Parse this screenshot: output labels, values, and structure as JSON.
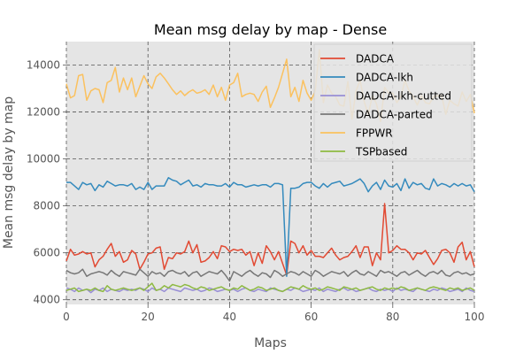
{
  "chart_data": {
    "type": "line",
    "title": "Mean msg delay by map - Dense",
    "xlabel": "Maps",
    "ylabel": "Mean msg delay by map",
    "xlim": [
      0,
      100
    ],
    "ylim": [
      3800,
      15000
    ],
    "xticks": [
      0,
      20,
      40,
      60,
      80,
      100
    ],
    "yticks": [
      4000,
      6000,
      8000,
      10000,
      12000,
      14000
    ],
    "grid": true,
    "legend_position": "top-right",
    "background": "#e5e5e5",
    "series": [
      {
        "name": "DADCA",
        "color": "#e24a33",
        "values": [
          5650,
          6150,
          5900,
          5950,
          6050,
          5950,
          6000,
          5400,
          5700,
          5850,
          6150,
          6400,
          5850,
          6050,
          5600,
          5700,
          6100,
          5950,
          5300,
          5600,
          5950,
          6000,
          6200,
          6250,
          5300,
          5800,
          5750,
          6000,
          5950,
          6050,
          6500,
          6000,
          6350,
          5600,
          5650,
          5800,
          6050,
          5750,
          6300,
          6250,
          6050,
          6150,
          6100,
          6150,
          5900,
          6050,
          5450,
          6000,
          5550,
          6300,
          6050,
          5700,
          6050,
          5550,
          5050,
          6500,
          6400,
          6000,
          6300,
          5900,
          6100,
          5850,
          5850,
          5800,
          6000,
          6200,
          5900,
          5700,
          5800,
          5850,
          6050,
          6300,
          5800,
          6250,
          6250,
          5450,
          6000,
          5700,
          8100,
          6000,
          6100,
          6300,
          6150,
          6150,
          6000,
          5700,
          6000,
          5950,
          6100,
          5800,
          5500,
          5750,
          6100,
          6150,
          6000,
          5600,
          6250,
          6450,
          5700,
          6050,
          5400
        ]
      },
      {
        "name": "DADCA-lkh",
        "color": "#348abd",
        "values": [
          9000,
          9000,
          8850,
          8700,
          9000,
          8900,
          8950,
          8650,
          8900,
          8800,
          9050,
          8950,
          8850,
          8900,
          8900,
          8850,
          8950,
          8700,
          8800,
          8700,
          9000,
          8700,
          8850,
          8850,
          8850,
          9200,
          9100,
          9050,
          8900,
          9000,
          9100,
          8850,
          8900,
          8800,
          8950,
          8900,
          8900,
          8850,
          8850,
          8950,
          8800,
          9000,
          8900,
          8900,
          8800,
          8850,
          8900,
          8850,
          8900,
          8900,
          8800,
          8950,
          8950,
          8900,
          5000,
          8750,
          8750,
          8800,
          8950,
          9000,
          9000,
          8850,
          8750,
          8950,
          8800,
          8950,
          9000,
          9050,
          8850,
          8900,
          8950,
          9050,
          9150,
          8950,
          8600,
          8850,
          9000,
          8700,
          9100,
          8850,
          8800,
          8950,
          8650,
          9150,
          8750,
          9000,
          8900,
          8950,
          8750,
          8700,
          9150,
          8850,
          8950,
          8900,
          8800,
          8950,
          8850,
          8950,
          8850,
          8900,
          8600
        ]
      },
      {
        "name": "DADCA-lkh-cutted",
        "color": "#988ed5",
        "values": [
          4500,
          4450,
          4350,
          4500,
          4400,
          4450,
          4300,
          4450,
          4400,
          4500,
          4350,
          4450,
          4400,
          4350,
          4450,
          4400,
          4450,
          4400,
          4500,
          4450,
          4350,
          4500,
          4400,
          4450,
          4350,
          4500,
          4450,
          4400,
          4350,
          4500,
          4450,
          4400,
          4450,
          4350,
          4400,
          4500,
          4450,
          4350,
          4400,
          4450,
          4400,
          4450,
          4350,
          4450,
          4500,
          4400,
          4350,
          4450,
          4400,
          4350,
          4500,
          4450,
          4400,
          4350,
          4450,
          4400,
          4500,
          4450,
          4350,
          4400,
          4450,
          4400,
          4500,
          4350,
          4450,
          4400,
          4350,
          4450,
          4500,
          4400,
          4450,
          4350,
          4400,
          4450,
          4500,
          4400,
          4350,
          4450,
          4400,
          4450,
          4350,
          4500,
          4400,
          4450,
          4400,
          4350,
          4500,
          4450,
          4400,
          4350,
          4450,
          4400,
          4500,
          4450,
          4350,
          4400,
          4450,
          4350,
          4500,
          4400,
          4350
        ]
      },
      {
        "name": "DADCA-parted",
        "color": "#777777",
        "values": [
          5250,
          5150,
          5100,
          5150,
          5300,
          5000,
          5100,
          5150,
          5200,
          5150,
          5050,
          5250,
          5100,
          5000,
          5200,
          5150,
          5100,
          5050,
          5300,
          5150,
          5000,
          5200,
          5100,
          5150,
          5000,
          5200,
          5250,
          5150,
          5100,
          5200,
          5000,
          5150,
          5200,
          5000,
          5100,
          5200,
          5150,
          5100,
          5250,
          5050,
          4800,
          5200,
          5100,
          5000,
          5150,
          5250,
          5100,
          5000,
          5150,
          5100,
          4950,
          5250,
          5150,
          5000,
          5100,
          5200,
          5150,
          5050,
          5200,
          5100,
          5000,
          5250,
          5150,
          5000,
          5100,
          5200,
          5150,
          5100,
          5200,
          5000,
          5150,
          5250,
          5100,
          5050,
          5200,
          5100,
          5000,
          5250,
          5150,
          5200,
          5100,
          5000,
          5150,
          5200,
          5050,
          5150,
          5250,
          5100,
          5000,
          5150,
          5200,
          5100,
          5250,
          5050,
          5000,
          5150,
          5200,
          5100,
          5150,
          5050,
          5100
        ]
      },
      {
        "name": "FPPWR",
        "color": "#fbc15e",
        "values": [
          13200,
          12600,
          12700,
          13550,
          13600,
          12500,
          12900,
          13000,
          12950,
          12400,
          13250,
          13350,
          13900,
          12850,
          13450,
          12950,
          13450,
          12650,
          13100,
          13550,
          13200,
          13000,
          13500,
          13650,
          13450,
          13200,
          12950,
          12750,
          12900,
          12700,
          12850,
          12950,
          12800,
          12850,
          12950,
          12750,
          13150,
          12650,
          13050,
          12500,
          13150,
          13250,
          13650,
          12650,
          12750,
          12800,
          12750,
          12450,
          12850,
          13100,
          12200,
          12600,
          13050,
          13650,
          14250,
          12650,
          13050,
          12450,
          13350,
          12800,
          12500,
          12900,
          14650,
          12400,
          13150,
          12800,
          12650,
          12300,
          12250,
          13300,
          11700,
          12900,
          13350,
          12450,
          11900,
          12700,
          12350,
          11600,
          13050,
          12800,
          12800,
          12400,
          12650,
          13350,
          12900,
          12650,
          12300,
          12700,
          12400,
          12350,
          12650,
          12700,
          12700,
          11900,
          12500,
          12350,
          12250,
          12850,
          12450,
          12750,
          11950
        ]
      },
      {
        "name": "TSPbased",
        "color": "#8eba42",
        "values": [
          4400,
          4450,
          4500,
          4350,
          4400,
          4450,
          4400,
          4500,
          4400,
          4350,
          4600,
          4450,
          4400,
          4450,
          4500,
          4450,
          4400,
          4450,
          4500,
          4400,
          4550,
          4700,
          4400,
          4450,
          4600,
          4500,
          4650,
          4600,
          4550,
          4650,
          4600,
          4500,
          4450,
          4550,
          4500,
          4400,
          4450,
          4500,
          4550,
          4450,
          4400,
          4500,
          4450,
          4600,
          4500,
          4400,
          4450,
          4550,
          4500,
          4400,
          4450,
          4500,
          4400,
          4350,
          4450,
          4550,
          4500,
          4450,
          4600,
          4500,
          4450,
          4500,
          4400,
          4450,
          4550,
          4500,
          4450,
          4400,
          4550,
          4500,
          4450,
          4500,
          4400,
          4450,
          4500,
          4550,
          4450,
          4400,
          4500,
          4450,
          4500,
          4450,
          4550,
          4500,
          4400,
          4450,
          4500,
          4450,
          4400,
          4500,
          4550,
          4500,
          4450,
          4400,
          4500,
          4450,
          4500,
          4400,
          4450,
          4500,
          4400
        ]
      }
    ]
  }
}
